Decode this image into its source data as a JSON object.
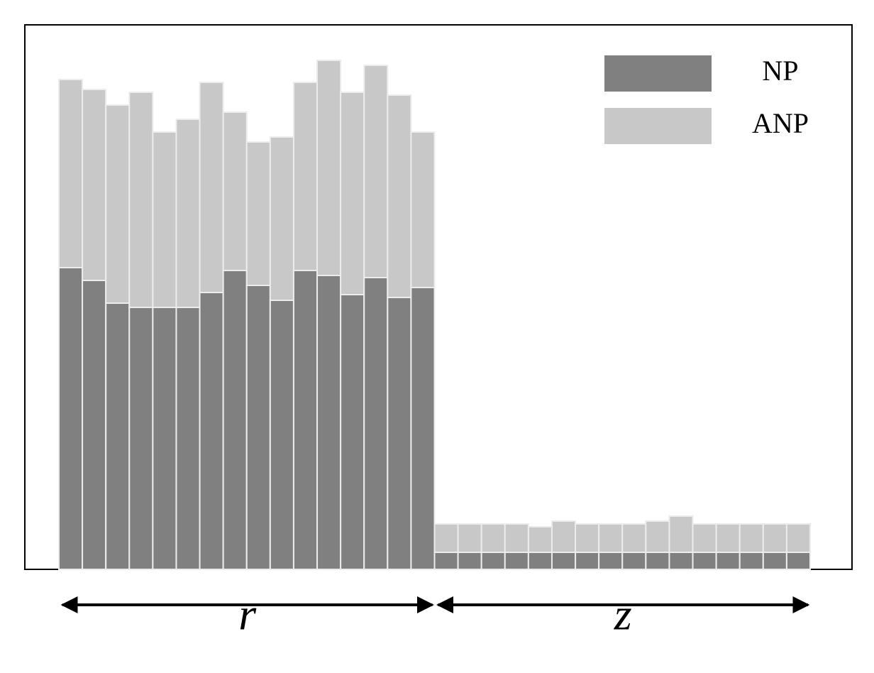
{
  "chart_data": {
    "type": "stacked-bar",
    "categories": [
      null,
      null,
      null,
      null,
      null,
      null,
      null,
      null,
      null,
      null,
      null,
      null,
      null,
      null,
      null,
      null,
      null,
      null,
      null,
      null,
      null,
      null,
      null,
      null,
      null,
      null,
      null,
      null,
      null,
      null,
      null,
      null
    ],
    "series": [
      {
        "name": "NP",
        "color": "#808080",
        "values": [
          425,
          407,
          375,
          369,
          369,
          369,
          390,
          421,
          400,
          379,
          421,
          414,
          387,
          411,
          383,
          397,
          24,
          24,
          24,
          24,
          24,
          24,
          24,
          24,
          24,
          24,
          24,
          24,
          24,
          24,
          24,
          24
        ]
      },
      {
        "name": "ANP",
        "color": "#c8c8c8",
        "values": [
          265,
          269,
          279,
          303,
          247,
          265,
          296,
          223,
          202,
          230,
          265,
          303,
          285,
          299,
          285,
          219,
          40,
          40,
          40,
          40,
          36,
          44,
          40,
          40,
          40,
          44,
          51,
          40,
          40,
          40,
          40,
          40
        ]
      }
    ],
    "groups": [
      "r",
      "z"
    ],
    "ylim": [
      0,
      767
    ],
    "legend": "upper right"
  }
}
